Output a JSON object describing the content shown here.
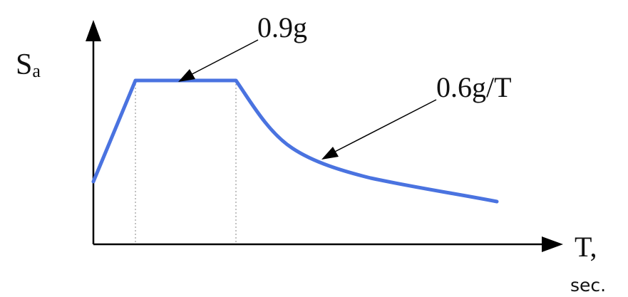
{
  "diagram": {
    "ylabel": {
      "main": "S",
      "sub": "a"
    },
    "xlabel": {
      "main": "T,",
      "unit": "sec."
    },
    "annotations": {
      "plateau": "0.9g",
      "decay": "0.6g/T"
    },
    "colors": {
      "curve": "#4A73E0",
      "axes": "#000000",
      "guide_lines": "#9a9a9a",
      "text": "#111111"
    }
  }
}
